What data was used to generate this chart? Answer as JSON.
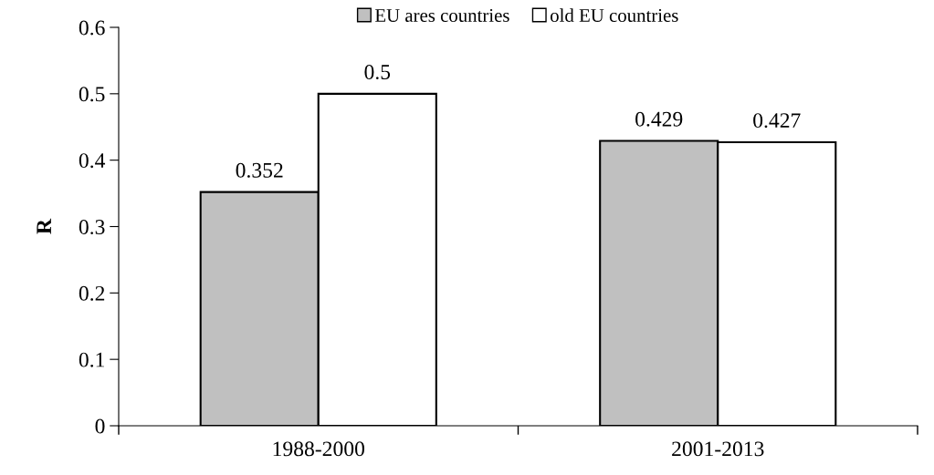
{
  "chart_data": {
    "type": "bar",
    "ylabel": "R",
    "categories": [
      "1988-2000",
      "2001-2013"
    ],
    "series": [
      {
        "name": "EU ares countries",
        "color": "#c0c0c0",
        "values": [
          0.352,
          0.429
        ]
      },
      {
        "name": "old EU countries",
        "color": "#ffffff",
        "values": [
          0.5,
          0.427
        ]
      }
    ],
    "ylim": [
      0,
      0.6
    ],
    "yticks": [
      0,
      0.1,
      0.2,
      0.3,
      0.4,
      0.5,
      0.6
    ],
    "data_labels": true,
    "grid": false,
    "legend": "top"
  }
}
